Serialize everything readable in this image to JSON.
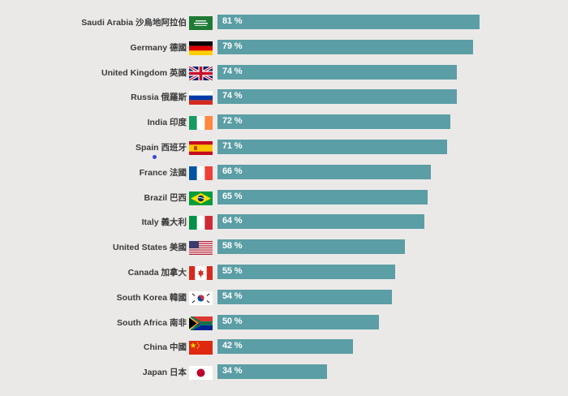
{
  "chart_data": {
    "type": "bar",
    "orientation": "horizontal",
    "title": "",
    "xlabel": "",
    "ylabel": "",
    "xlim": [
      0,
      100
    ],
    "value_suffix": " %",
    "bar_color": "#5b9ea5",
    "categories": [
      "Saudi Arabia 沙烏地阿拉伯",
      "Germany 德國",
      "United Kingdom 英國",
      "Russia 俄羅斯",
      "India 印度",
      "Spain 西班牙",
      "France 法國",
      "Brazil 巴西",
      "Italy 義大利",
      "United States 美國",
      "Canada 加拿大",
      "South Korea 韓國",
      "South Africa 南非",
      "China 中國",
      "Japan 日本"
    ],
    "flags": [
      "saudi-arabia",
      "germany",
      "united-kingdom",
      "russia",
      "india",
      "spain",
      "france",
      "brazil",
      "italy",
      "united-states",
      "canada",
      "south-korea",
      "south-africa",
      "china",
      "japan"
    ],
    "values": [
      81,
      79,
      74,
      74,
      72,
      71,
      66,
      65,
      64,
      58,
      55,
      54,
      50,
      42,
      34
    ]
  }
}
